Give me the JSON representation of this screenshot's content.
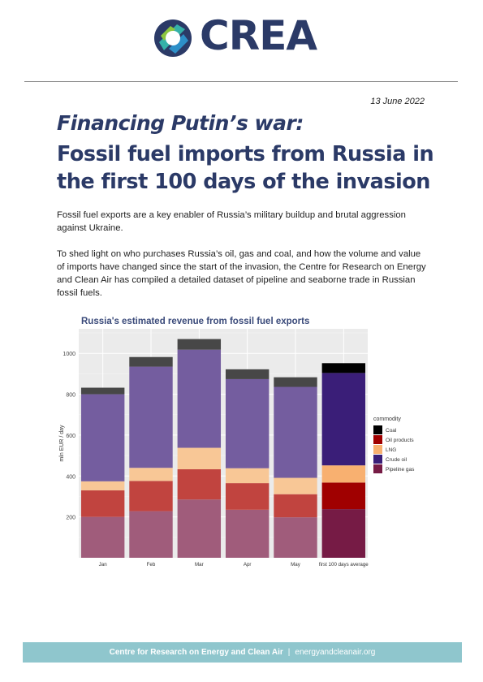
{
  "header": {
    "logo_text": "CREA",
    "logo_colors": [
      "#2b3a67",
      "#35b1a9",
      "#8cc63f",
      "#2d8fc8"
    ]
  },
  "date": "13 June 2022",
  "kicker": "Financing Putin’s war:",
  "title": "Fossil fuel imports from Russia in the first 100 days of the invasion",
  "paragraphs": [
    "Fossil fuel exports are a key enabler of Russia’s military buildup and brutal aggression against Ukraine.",
    "To shed light on who purchases Russia’s oil, gas and coal, and how the volume and value of imports have changed since the start of the invasion, the Centre for Research on Energy and Clean Air has compiled a detailed dataset of pipeline and seaborne trade in Russian fossil fuels."
  ],
  "chart_data": {
    "type": "bar",
    "stacked": true,
    "title": "Russia's estimated revenue from fossil fuel exports",
    "ylabel": "mln EUR / day",
    "xlabel": "",
    "ylim": [
      0,
      1120
    ],
    "yticks": [
      200,
      400,
      600,
      800,
      1000
    ],
    "grid": true,
    "legend_title": "commodity",
    "legend_position": "right",
    "categories": [
      "Jan",
      "Feb",
      "Mar",
      "Apr",
      "May",
      "first 100 days average"
    ],
    "series": [
      {
        "name": "Pipeline gas",
        "color": "#a05c7b",
        "highlight_color": "#761b45",
        "values": [
          200,
          228,
          285,
          235,
          198,
          238
        ]
      },
      {
        "name": "Oil products",
        "color": "#c1443f",
        "highlight_color": "#a00000",
        "values": [
          130,
          148,
          148,
          130,
          113,
          130
        ]
      },
      {
        "name": "LNG",
        "color": "#f8c796",
        "highlight_color": "#f8b070",
        "values": [
          44,
          64,
          105,
          73,
          80,
          84
        ]
      },
      {
        "name": "Crude oil",
        "color": "#745d9f",
        "highlight_color": "#3a1e78",
        "values": [
          426,
          495,
          480,
          436,
          445,
          452
        ]
      },
      {
        "name": "Coal",
        "color": "#474747",
        "highlight_color": "#000000",
        "values": [
          32,
          47,
          52,
          48,
          47,
          48
        ]
      }
    ],
    "highlight_category": "first 100 days average",
    "legend_order": [
      "Coal",
      "Oil products",
      "LNG",
      "Crude oil",
      "Pipeline gas"
    ]
  },
  "footer": {
    "org": "Centre for Research on Energy and Clean Air",
    "separator": "|",
    "website": "energyandcleanair.org"
  }
}
